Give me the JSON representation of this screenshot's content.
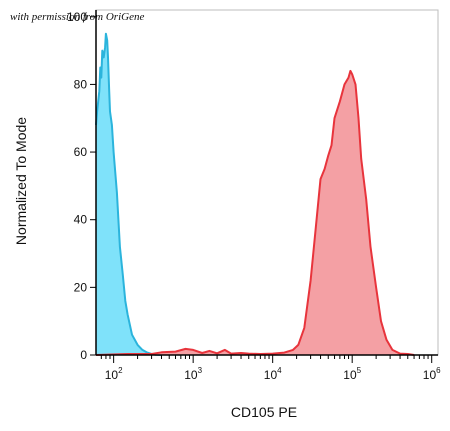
{
  "watermark": "with permission from OriGene",
  "chart_data": {
    "type": "area",
    "xlabel": "CD105 PE",
    "ylabel": "Normalized To Mode",
    "x_scale": "log",
    "xlim": [
      60,
      1200000
    ],
    "ylim": [
      0,
      102
    ],
    "x_ticks": [
      {
        "value": 100,
        "base": "10",
        "exp": "2"
      },
      {
        "value": 1000,
        "base": "10",
        "exp": "3"
      },
      {
        "value": 10000,
        "base": "10",
        "exp": "4"
      },
      {
        "value": 100000,
        "base": "10",
        "exp": "5"
      },
      {
        "value": 1000000,
        "base": "10",
        "exp": "6"
      }
    ],
    "y_ticks": [
      0,
      20,
      40,
      60,
      80,
      100
    ],
    "grid": false,
    "series": [
      {
        "color": "#2bb4dc",
        "fill": "#7fe2fa",
        "x": [
          60,
          62,
          64,
          66,
          68,
          70,
          72,
          75,
          78,
          80,
          83,
          85,
          88,
          90,
          95,
          100,
          110,
          120,
          130,
          140,
          150,
          170,
          200,
          230,
          260,
          300,
          330,
          400
        ],
        "y": [
          68,
          72,
          75,
          78,
          85,
          82,
          90,
          88,
          91,
          95,
          93,
          88,
          78,
          72,
          68,
          60,
          48,
          32,
          24,
          16,
          12,
          6,
          3,
          1.5,
          0.8,
          0.3,
          0.1,
          0
        ]
      },
      {
        "color": "#e8343c",
        "fill": "#f4a0a4",
        "x": [
          60,
          150,
          300,
          400,
          600,
          800,
          1000,
          1300,
          1600,
          2000,
          2500,
          3000,
          4000,
          5000,
          7000,
          10000,
          14000,
          18000,
          21000,
          25000,
          30000,
          35000,
          40000,
          45000,
          50000,
          55000,
          60000,
          70000,
          80000,
          90000,
          95000,
          100000,
          110000,
          120000,
          130000,
          150000,
          170000,
          200000,
          230000,
          270000,
          320000,
          400000,
          500000,
          600000
        ],
        "y": [
          0,
          0.3,
          0.3,
          0.8,
          1,
          1.8,
          1.5,
          0.6,
          1.2,
          0.5,
          1.5,
          0.4,
          0.6,
          0.4,
          0.3,
          0.4,
          0.7,
          1.5,
          3,
          8,
          22,
          38,
          52,
          55,
          59,
          62,
          70,
          75,
          80,
          82,
          84,
          83,
          80,
          70,
          58,
          46,
          32,
          20,
          10,
          4.5,
          1.5,
          0.4,
          0.3,
          0
        ]
      }
    ]
  }
}
